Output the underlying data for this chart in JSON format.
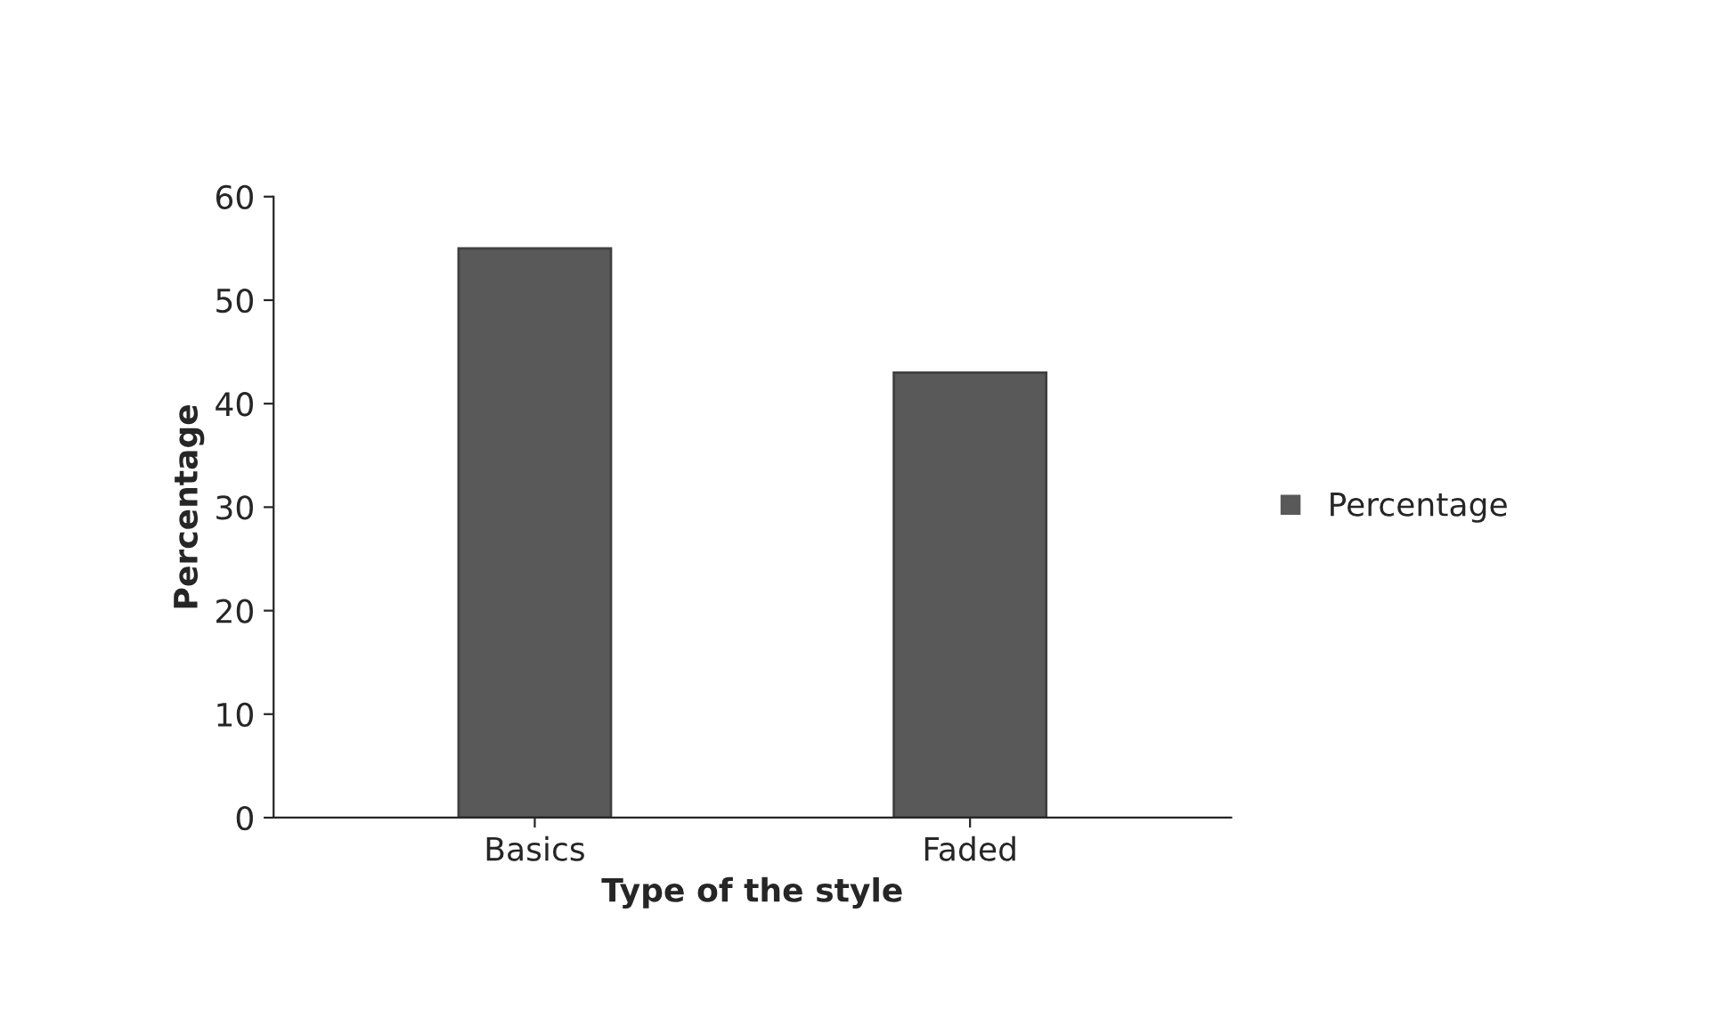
{
  "chart_data": {
    "type": "bar",
    "xlabel": "Type of the style",
    "ylabel": "Percentage",
    "categories": [
      "Basics",
      "Faded"
    ],
    "series": [
      {
        "name": "Percentage",
        "color": "#595959",
        "values": [
          55,
          43
        ]
      }
    ],
    "ylim": [
      0,
      60
    ],
    "yticks": [
      0,
      10,
      20,
      30,
      40,
      50,
      60
    ],
    "grid": false,
    "legend": "right"
  }
}
